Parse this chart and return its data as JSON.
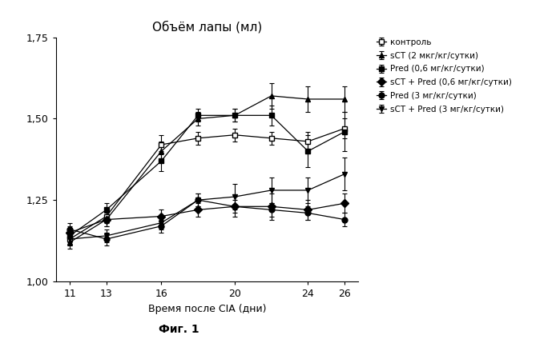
{
  "title": "Объём лапы (мл)",
  "xlabel": "Время после CIA (дни)",
  "figcaption": "Фиг. 1",
  "x": [
    11,
    13,
    16,
    18,
    20,
    22,
    24,
    26
  ],
  "series": [
    {
      "label": "контроль",
      "marker": "s",
      "fillstyle": "none",
      "color": "#000000",
      "y": [
        1.13,
        1.2,
        1.42,
        1.44,
        1.45,
        1.44,
        1.43,
        1.47
      ],
      "yerr": [
        0.02,
        0.02,
        0.03,
        0.02,
        0.02,
        0.02,
        0.03,
        0.03
      ]
    },
    {
      "label": "sCT (2 мкг/кг/сутки)",
      "marker": "^",
      "fillstyle": "full",
      "color": "#000000",
      "y": [
        1.12,
        1.19,
        1.4,
        1.5,
        1.51,
        1.57,
        1.56,
        1.56
      ],
      "yerr": [
        0.02,
        0.02,
        0.03,
        0.02,
        0.02,
        0.04,
        0.04,
        0.04
      ]
    },
    {
      "label": "Pred (0,6 мг/кг/сутки)",
      "marker": "s",
      "fillstyle": "full",
      "color": "#000000",
      "y": [
        1.14,
        1.22,
        1.37,
        1.51,
        1.51,
        1.51,
        1.4,
        1.46
      ],
      "yerr": [
        0.02,
        0.02,
        0.03,
        0.02,
        0.02,
        0.03,
        0.05,
        0.06
      ]
    },
    {
      "label": "sCT + Pred (0,6 мг/кг/сутки)",
      "marker": "D",
      "fillstyle": "full",
      "color": "#000000",
      "y": [
        1.15,
        1.19,
        1.2,
        1.22,
        1.23,
        1.23,
        1.22,
        1.24
      ],
      "yerr": [
        0.02,
        0.02,
        0.02,
        0.02,
        0.03,
        0.04,
        0.03,
        0.03
      ]
    },
    {
      "label": "Pred (3 мг/кг/сутки)",
      "marker": "o",
      "fillstyle": "full",
      "color": "#000000",
      "y": [
        1.16,
        1.13,
        1.17,
        1.25,
        1.23,
        1.22,
        1.21,
        1.19
      ],
      "yerr": [
        0.02,
        0.02,
        0.02,
        0.02,
        0.02,
        0.02,
        0.02,
        0.02
      ]
    },
    {
      "label": "sCT + Pred (3 мг/кг/сутки)",
      "marker": "v",
      "fillstyle": "full",
      "color": "#000000",
      "y": [
        1.13,
        1.14,
        1.18,
        1.25,
        1.26,
        1.28,
        1.28,
        1.33
      ],
      "yerr": [
        0.02,
        0.02,
        0.02,
        0.02,
        0.04,
        0.04,
        0.04,
        0.05
      ]
    }
  ],
  "ylim": [
    1.0,
    1.75
  ],
  "yticks": [
    1.0,
    1.25,
    1.5,
    1.75
  ],
  "ytick_labels": [
    "1,00",
    "1,25",
    "1,50",
    "1,75"
  ],
  "xticks": [
    11,
    13,
    16,
    20,
    24,
    26
  ],
  "background_color": "#ffffff",
  "legend_fontsize": 7.5,
  "title_fontsize": 11,
  "axis_fontsize": 9,
  "tick_fontsize": 9
}
